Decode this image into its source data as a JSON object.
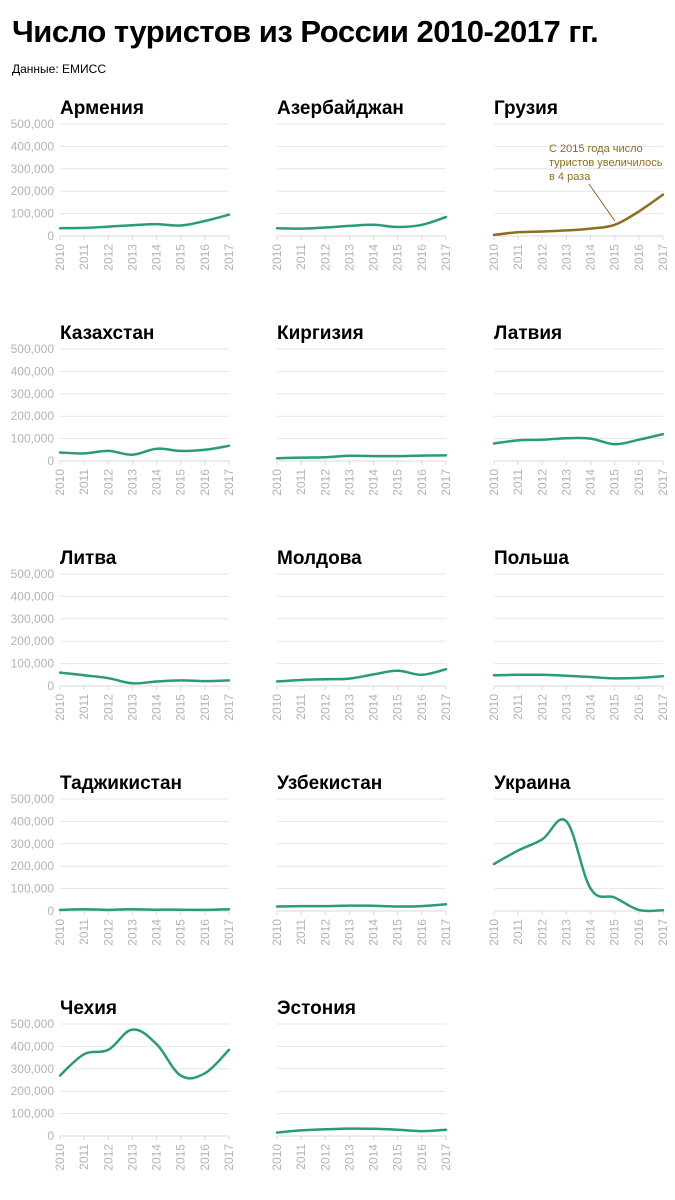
{
  "title": "Число туристов из России 2010-2017 гг.",
  "source": "Данные: ЕМИСС",
  "colors": {
    "line": "#2a9a7c",
    "highlight": "#8c6e1f",
    "grid": "#e6e6e6",
    "tick": "#b3b3b3"
  },
  "chart_data": [
    {
      "type": "line",
      "title": "Армения",
      "x": [
        2010,
        2011,
        2012,
        2013,
        2014,
        2015,
        2016,
        2017
      ],
      "ylim": [
        0,
        500000
      ],
      "yticks": [
        0,
        100000,
        200000,
        300000,
        400000,
        500000
      ],
      "series": [
        {
          "values": [
            35000,
            36000,
            42000,
            48000,
            53000,
            47000,
            67000,
            95000
          ]
        }
      ]
    },
    {
      "type": "line",
      "title": "Азербайджан",
      "x": [
        2010,
        2011,
        2012,
        2013,
        2014,
        2015,
        2016,
        2017
      ],
      "ylim": [
        0,
        500000
      ],
      "yticks": [
        0,
        100000,
        200000,
        300000,
        400000,
        500000
      ],
      "series": [
        {
          "values": [
            35000,
            33000,
            38000,
            45000,
            50000,
            40000,
            50000,
            85000
          ]
        }
      ]
    },
    {
      "type": "line",
      "title": "Грузия",
      "x": [
        2010,
        2011,
        2012,
        2013,
        2014,
        2015,
        2016,
        2017
      ],
      "ylim": [
        0,
        500000
      ],
      "yticks": [
        0,
        100000,
        200000,
        300000,
        400000,
        500000
      ],
      "highlight": true,
      "annotation": {
        "lines": [
          "С 2015 года число",
          "туристов увеличилось",
          "в 4 раза"
        ]
      },
      "series": [
        {
          "values": [
            5000,
            17000,
            20000,
            25000,
            33000,
            50000,
            110000,
            185000
          ]
        }
      ]
    },
    {
      "type": "line",
      "title": "Казахстан",
      "x": [
        2010,
        2011,
        2012,
        2013,
        2014,
        2015,
        2016,
        2017
      ],
      "ylim": [
        0,
        500000
      ],
      "yticks": [
        0,
        100000,
        200000,
        300000,
        400000,
        500000
      ],
      "series": [
        {
          "values": [
            38000,
            34000,
            45000,
            28000,
            55000,
            45000,
            50000,
            68000
          ]
        }
      ]
    },
    {
      "type": "line",
      "title": "Киргизия",
      "x": [
        2010,
        2011,
        2012,
        2013,
        2014,
        2015,
        2016,
        2017
      ],
      "ylim": [
        0,
        500000
      ],
      "yticks": [
        0,
        100000,
        200000,
        300000,
        400000,
        500000
      ],
      "series": [
        {
          "values": [
            12000,
            15000,
            17000,
            23000,
            22000,
            22000,
            24000,
            25000
          ]
        }
      ]
    },
    {
      "type": "line",
      "title": "Латвия",
      "x": [
        2010,
        2011,
        2012,
        2013,
        2014,
        2015,
        2016,
        2017
      ],
      "ylim": [
        0,
        500000
      ],
      "yticks": [
        0,
        100000,
        200000,
        300000,
        400000,
        500000
      ],
      "series": [
        {
          "values": [
            78000,
            92000,
            95000,
            102000,
            100000,
            75000,
            95000,
            120000
          ]
        }
      ]
    },
    {
      "type": "line",
      "title": "Литва",
      "x": [
        2010,
        2011,
        2012,
        2013,
        2014,
        2015,
        2016,
        2017
      ],
      "ylim": [
        0,
        500000
      ],
      "yticks": [
        0,
        100000,
        200000,
        300000,
        400000,
        500000
      ],
      "series": [
        {
          "values": [
            60000,
            48000,
            35000,
            12000,
            20000,
            25000,
            22000,
            25000
          ]
        }
      ]
    },
    {
      "type": "line",
      "title": "Молдова",
      "x": [
        2010,
        2011,
        2012,
        2013,
        2014,
        2015,
        2016,
        2017
      ],
      "ylim": [
        0,
        500000
      ],
      "yticks": [
        0,
        100000,
        200000,
        300000,
        400000,
        500000
      ],
      "series": [
        {
          "values": [
            20000,
            27000,
            30000,
            33000,
            52000,
            68000,
            50000,
            75000
          ]
        }
      ]
    },
    {
      "type": "line",
      "title": "Польша",
      "x": [
        2010,
        2011,
        2012,
        2013,
        2014,
        2015,
        2016,
        2017
      ],
      "ylim": [
        0,
        500000
      ],
      "yticks": [
        0,
        100000,
        200000,
        300000,
        400000,
        500000
      ],
      "series": [
        {
          "values": [
            48000,
            50000,
            50000,
            46000,
            40000,
            34000,
            36000,
            44000
          ]
        }
      ]
    },
    {
      "type": "line",
      "title": "Таджикистан",
      "x": [
        2010,
        2011,
        2012,
        2013,
        2014,
        2015,
        2016,
        2017
      ],
      "ylim": [
        0,
        500000
      ],
      "yticks": [
        0,
        100000,
        200000,
        300000,
        400000,
        500000
      ],
      "series": [
        {
          "values": [
            5000,
            8000,
            5000,
            8000,
            6000,
            6000,
            5000,
            8000
          ]
        }
      ]
    },
    {
      "type": "line",
      "title": "Узбекистан",
      "x": [
        2010,
        2011,
        2012,
        2013,
        2014,
        2015,
        2016,
        2017
      ],
      "ylim": [
        0,
        500000
      ],
      "yticks": [
        0,
        100000,
        200000,
        300000,
        400000,
        500000
      ],
      "series": [
        {
          "values": [
            20000,
            22000,
            22000,
            24000,
            23000,
            20000,
            22000,
            30000
          ]
        }
      ]
    },
    {
      "type": "line",
      "title": "Украина",
      "x": [
        2010,
        2011,
        2012,
        2013,
        2014,
        2015,
        2016,
        2017
      ],
      "ylim": [
        0,
        500000
      ],
      "yticks": [
        0,
        100000,
        200000,
        300000,
        400000,
        500000
      ],
      "series": [
        {
          "values": [
            210000,
            270000,
            320000,
            400000,
            100000,
            60000,
            5000,
            3000
          ]
        }
      ]
    },
    {
      "type": "line",
      "title": "Чехия",
      "x": [
        2010,
        2011,
        2012,
        2013,
        2014,
        2015,
        2016,
        2017
      ],
      "ylim": [
        0,
        500000
      ],
      "yticks": [
        0,
        100000,
        200000,
        300000,
        400000,
        500000
      ],
      "series": [
        {
          "values": [
            270000,
            365000,
            385000,
            475000,
            410000,
            270000,
            280000,
            385000
          ]
        }
      ]
    },
    {
      "type": "line",
      "title": "Эстония",
      "x": [
        2010,
        2011,
        2012,
        2013,
        2014,
        2015,
        2016,
        2017
      ],
      "ylim": [
        0,
        500000
      ],
      "yticks": [
        0,
        100000,
        200000,
        300000,
        400000,
        500000
      ],
      "series": [
        {
          "values": [
            15000,
            25000,
            30000,
            33000,
            32000,
            28000,
            22000,
            28000
          ]
        }
      ]
    }
  ]
}
